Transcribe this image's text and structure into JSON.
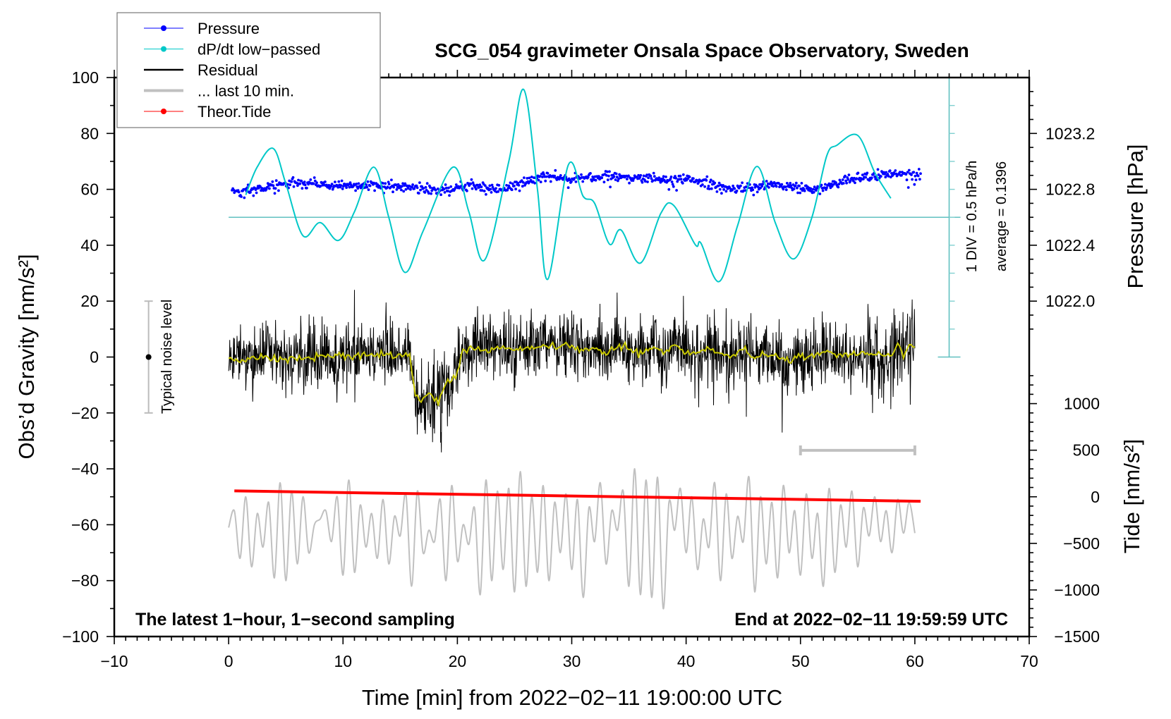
{
  "chart_data": {
    "type": "line",
    "title": "SCG_054 gravimeter Onsala Space Observatory, Sweden",
    "xlabel": "Time [min] from 2022−02−11 19:00:00 UTC",
    "ylabel": "Obs’d Gravity [nm/s²]",
    "ylabel_pressure": "Pressure [hPa]",
    "ylabel_tide": "Tide [nm/s²]",
    "xlim": [
      -10,
      70
    ],
    "ylim": [
      -100,
      100
    ],
    "xticks": [
      -10,
      0,
      10,
      20,
      30,
      40,
      50,
      60,
      70
    ],
    "xtick_labels": [
      "−10",
      "0",
      "10",
      "20",
      "30",
      "40",
      "50",
      "60",
      "70"
    ],
    "yticks": [
      -100,
      -80,
      -60,
      -40,
      -20,
      0,
      20,
      40,
      60,
      80,
      100
    ],
    "ytick_labels": [
      "−100",
      "−80",
      "−60",
      "−40",
      "−20",
      "0",
      "20",
      "40",
      "60",
      "80",
      "100"
    ],
    "pressure_axis": {
      "ticks": [
        1022.0,
        1022.4,
        1022.8,
        1023.2
      ],
      "tick_labels": [
        "1022.0",
        "1022.4",
        "1022.8",
        "1023.2"
      ]
    },
    "tide_axis": {
      "ticks": [
        -1500,
        -1000,
        -500,
        0,
        500,
        1000
      ],
      "tick_labels": [
        "−1500",
        "−1000",
        "−500",
        "0",
        "500",
        "1000"
      ]
    },
    "grid": false,
    "legend_placement": "top-left",
    "legend": [
      {
        "label": "Pressure",
        "color": "#0000ff",
        "style": "line-dot"
      },
      {
        "label": "dP/dt low−passed",
        "color": "#00c8c8",
        "style": "line-dot"
      },
      {
        "label": "Residual",
        "color": "#000000",
        "style": "line"
      },
      {
        "label": "... last 10 min.",
        "color": "#c0c0c0",
        "style": "thick-line"
      },
      {
        "label": "Theor.Tide",
        "color": "#ff0000",
        "style": "line-dot"
      }
    ],
    "series": {
      "pressure_hPa": {
        "color": "#0000ff",
        "x": [
          0.3,
          3,
          6.1,
          9,
          12.3,
          15,
          18.5,
          21.5,
          23.6,
          25.5,
          27.5,
          29.4,
          31.8,
          33.3,
          37.4,
          40.5,
          43.9,
          47.6,
          51.7,
          54.2,
          57.9,
          60.4
        ],
        "y": [
          1022.78,
          1022.81,
          1022.85,
          1022.83,
          1022.83,
          1022.82,
          1022.79,
          1022.83,
          1022.79,
          1022.84,
          1022.91,
          1022.87,
          1022.89,
          1022.9,
          1022.87,
          1022.87,
          1022.8,
          1022.83,
          1022.8,
          1022.87,
          1022.91,
          1022.91
        ]
      },
      "dpdt_hPa_per_h": {
        "color": "#00c8c8",
        "x": [
          1.5,
          2.5,
          3.9,
          5,
          6.5,
          8,
          9.6,
          11,
          12.7,
          14,
          15.4,
          17,
          19.6,
          21,
          22.4,
          24.5,
          25.8,
          27,
          27.9,
          29.7,
          31,
          32,
          33.3,
          34.3,
          36,
          37.8,
          38.9,
          40.8,
          41.3,
          42.9,
          44.5,
          46.2,
          47.8,
          49.4,
          51,
          52.3,
          53.2,
          55,
          56.5,
          57.9
        ],
        "y": [
          0.54,
          1.04,
          1.37,
          0.74,
          -0.19,
          0.045,
          -0.275,
          0.24,
          1.035,
          0.14,
          -0.845,
          -0.11,
          1.035,
          0.24,
          -0.62,
          1.14,
          2.425,
          0.64,
          -0.97,
          1.075,
          0.515,
          0.39,
          -0.34,
          -0.085,
          -0.68,
          0.215,
          0.355,
          -0.35,
          -0.325,
          -1.01,
          -0.01,
          1.05,
          0.04,
          -0.605,
          0.14,
          1.24,
          1.43,
          1.605,
          0.94,
          0.48
        ]
      },
      "residual_smoothed_nm_s2": {
        "color": "#c8c800",
        "x": [
          0,
          1,
          2,
          3,
          4,
          5,
          6,
          7,
          8,
          9,
          10,
          11,
          12,
          13,
          14,
          15,
          15.8,
          16.3,
          16.8,
          17.3,
          17.8,
          18.3,
          18.8,
          19.3,
          19.8,
          20.5,
          21,
          22,
          23,
          24,
          25,
          26,
          27,
          28,
          29,
          30,
          31,
          32,
          33,
          34,
          35,
          36,
          37,
          38,
          39,
          40,
          41,
          42,
          43,
          44,
          45,
          46,
          47,
          48,
          49,
          50,
          51,
          52,
          53,
          54,
          55,
          56,
          57,
          58,
          58.5,
          59,
          59.5,
          60
        ],
        "y": [
          0,
          -1,
          -0.5,
          0,
          -0.5,
          -1,
          0,
          -0.5,
          0.5,
          0,
          1,
          0.5,
          1,
          1.5,
          0.5,
          1,
          1.5,
          -14,
          -16,
          -13,
          -15,
          -16,
          -11,
          -9,
          -7,
          2.5,
          3.5,
          2.5,
          3,
          3.5,
          2.5,
          3,
          3.5,
          4,
          3,
          4,
          2.5,
          3,
          1.5,
          4,
          3,
          1.5,
          3.5,
          2,
          4.5,
          1.5,
          1,
          3.5,
          1,
          0,
          2.5,
          0,
          1,
          0.5,
          -1,
          0.5,
          0,
          1.5,
          1,
          0.5,
          1,
          2,
          1,
          0.5,
          4,
          1,
          4.5,
          3
        ]
      },
      "residual_noise_rms_nm_s2": 6,
      "last_10_min_nm_s2": {
        "color": "#c0c0c0",
        "x_start": 0,
        "x_step": 0.5,
        "y": [
          -61,
          -55,
          -72,
          -50,
          -75,
          -56,
          -68,
          -52,
          -79,
          -45,
          -80,
          -48,
          -74,
          -50,
          -70,
          -60,
          -58,
          -55,
          -66,
          -50,
          -78,
          -44,
          -77,
          -53,
          -68,
          -56,
          -72,
          -51,
          -74,
          -57,
          -64,
          -49,
          -82,
          -48,
          -70,
          -62,
          -66,
          -51,
          -80,
          -46,
          -73,
          -60,
          -67,
          -54,
          -85,
          -44,
          -80,
          -48,
          -76,
          -47,
          -84,
          -41,
          -82,
          -50,
          -77,
          -46,
          -80,
          -52,
          -70,
          -49,
          -76,
          -51,
          -86,
          -54,
          -66,
          -45,
          -74,
          -55,
          -62,
          -48,
          -82,
          -40,
          -85,
          -44,
          -86,
          -43,
          -90,
          -52,
          -62,
          -47,
          -70,
          -50,
          -76,
          -58,
          -68,
          -45,
          -80,
          -49,
          -72,
          -57,
          -66,
          -43,
          -84,
          -50,
          -74,
          -52,
          -79,
          -46,
          -70,
          -55,
          -78,
          -49,
          -72,
          -56,
          -82,
          -47,
          -77,
          -53,
          -68,
          -48,
          -75,
          -54,
          -64,
          -50,
          -66,
          -55,
          -70,
          -51,
          -63,
          -52,
          -63
        ]
      },
      "theor_tide_nm_s2": {
        "color": "#ff0000",
        "x": [
          0.5,
          60.5
        ],
        "y": [
          63,
          -48
        ]
      }
    },
    "dpdt_scale": {
      "per_div_hPa_h": 0.5,
      "average": 0.1396,
      "axis_x": 63
    },
    "noise_level": {
      "x": -7,
      "range": [
        -20,
        20
      ]
    },
    "last10_bar": {
      "range": [
        50,
        60
      ],
      "y": -33.4
    },
    "annotations": {
      "dpdt_div": "1 DIV = 0.5 hPa/h",
      "dpdt_average": "average = 0.1396",
      "noise_label": "Typical noise level",
      "footer_left": "The latest 1−hour, 1−second sampling",
      "footer_right": "End at 2022−02−11 19:59:59 UTC"
    }
  }
}
